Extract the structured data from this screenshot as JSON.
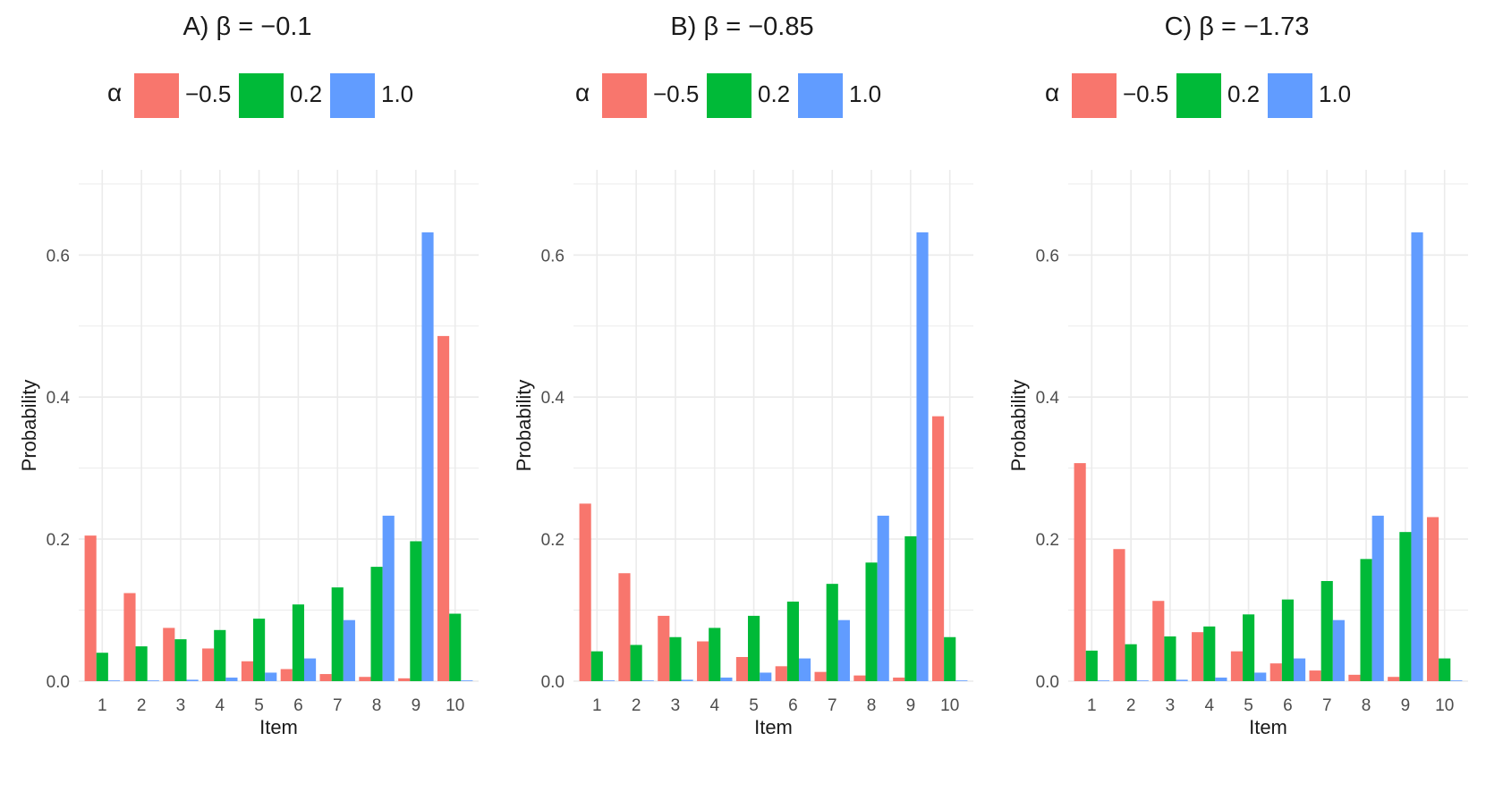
{
  "colors": {
    "neg05": "#F8766D",
    "pos02": "#00BA38",
    "pos10": "#619CFF",
    "grid": "#EBEBEB",
    "tick": "#4D4D4D"
  },
  "legend": {
    "title": "α",
    "labels": [
      "−0.5",
      "0.2",
      "1.0"
    ]
  },
  "chart_data": [
    {
      "type": "bar",
      "title": "A) β = −0.1",
      "xlabel": "Item",
      "ylabel": "Probability",
      "ylim": [
        0,
        0.72
      ],
      "yticks": [
        "0.0",
        "0.2",
        "0.4",
        "0.6"
      ],
      "categories": [
        "1",
        "2",
        "3",
        "4",
        "5",
        "6",
        "7",
        "8",
        "9",
        "10"
      ],
      "legend_placement": "top",
      "series": [
        {
          "name": "−0.5",
          "values": [
            0.205,
            0.124,
            0.075,
            0.046,
            0.028,
            0.017,
            0.01,
            0.006,
            0.004,
            0.486
          ]
        },
        {
          "name": "0.2",
          "values": [
            0.04,
            0.049,
            0.059,
            0.072,
            0.088,
            0.108,
            0.132,
            0.161,
            0.197,
            0.095
          ]
        },
        {
          "name": "1.0",
          "values": [
            0.001,
            0.001,
            0.002,
            0.005,
            0.012,
            0.032,
            0.086,
            0.233,
            0.632,
            0.001
          ]
        }
      ]
    },
    {
      "type": "bar",
      "title": "B) β = −0.85",
      "xlabel": "Item",
      "ylabel": "Probability",
      "ylim": [
        0,
        0.72
      ],
      "yticks": [
        "0.0",
        "0.2",
        "0.4",
        "0.6"
      ],
      "categories": [
        "1",
        "2",
        "3",
        "4",
        "5",
        "6",
        "7",
        "8",
        "9",
        "10"
      ],
      "legend_placement": "top",
      "series": [
        {
          "name": "−0.5",
          "values": [
            0.25,
            0.152,
            0.092,
            0.056,
            0.034,
            0.021,
            0.013,
            0.008,
            0.005,
            0.373
          ]
        },
        {
          "name": "0.2",
          "values": [
            0.042,
            0.051,
            0.062,
            0.075,
            0.092,
            0.112,
            0.137,
            0.167,
            0.204,
            0.062
          ]
        },
        {
          "name": "1.0",
          "values": [
            0.001,
            0.001,
            0.002,
            0.005,
            0.012,
            0.032,
            0.086,
            0.233,
            0.632,
            0.001
          ]
        }
      ]
    },
    {
      "type": "bar",
      "title": "C) β = −1.73",
      "xlabel": "Item",
      "ylabel": "Probability",
      "ylim": [
        0,
        0.72
      ],
      "yticks": [
        "0.0",
        "0.2",
        "0.4",
        "0.6"
      ],
      "categories": [
        "1",
        "2",
        "3",
        "4",
        "5",
        "6",
        "7",
        "8",
        "9",
        "10"
      ],
      "legend_placement": "top",
      "series": [
        {
          "name": "−0.5",
          "values": [
            0.307,
            0.186,
            0.113,
            0.069,
            0.042,
            0.025,
            0.015,
            0.009,
            0.006,
            0.231
          ]
        },
        {
          "name": "0.2",
          "values": [
            0.043,
            0.052,
            0.063,
            0.077,
            0.094,
            0.115,
            0.141,
            0.172,
            0.21,
            0.032
          ]
        },
        {
          "name": "1.0",
          "values": [
            0.001,
            0.001,
            0.002,
            0.005,
            0.012,
            0.032,
            0.086,
            0.233,
            0.632,
            0.001
          ]
        }
      ]
    }
  ]
}
